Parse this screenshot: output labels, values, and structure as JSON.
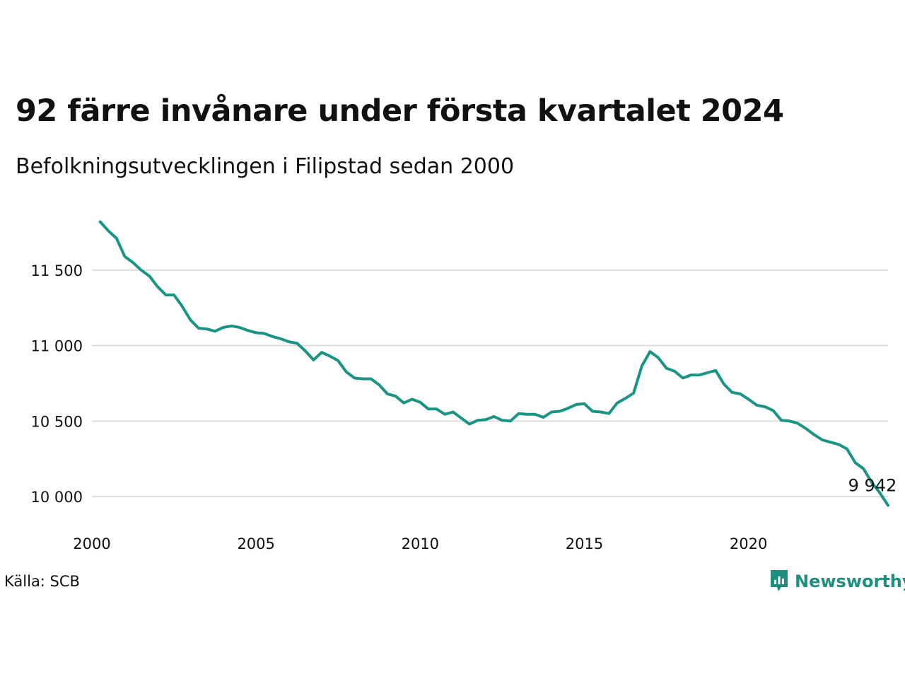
{
  "title": "92 färre invånare under första kvartalet 2024",
  "subtitle": "Befolkningsutvecklingen i Filipstad sedan 2000",
  "source": "Källa: SCB",
  "brand": "Newsworthy",
  "colors": {
    "line": "#1a9484",
    "grid": "#dddddd",
    "brand": "#1e8f7e"
  },
  "chart_data": {
    "type": "line",
    "title": "92 färre invånare under första kvartalet 2024",
    "subtitle": "Befolkningsutvecklingen i Filipstad sedan 2000",
    "xlabel": "",
    "ylabel": "",
    "xlim": [
      2000,
      2024.25
    ],
    "ylim": [
      9860,
      11930
    ],
    "x_ticks": [
      2000,
      2005,
      2010,
      2015,
      2020
    ],
    "x_tick_labels": [
      "2000",
      "2005",
      "2010",
      "2015",
      "2020"
    ],
    "y_ticks": [
      10000,
      10500,
      11000,
      11500
    ],
    "y_tick_labels": [
      "10 000",
      "10 500",
      "11 000",
      "11 500"
    ],
    "grid": true,
    "end_label": "9 942",
    "series": [
      {
        "x": [
          2000.25,
          2000.5,
          2000.75,
          2001,
          2001.25,
          2001.5,
          2001.75,
          2002,
          2002.25,
          2002.5,
          2002.75,
          2003,
          2003.25,
          2003.5,
          2003.75,
          2004,
          2004.25,
          2004.5,
          2004.75,
          2005,
          2005.25,
          2005.5,
          2005.75,
          2006,
          2006.25,
          2006.5,
          2006.75,
          2007,
          2007.25,
          2007.5,
          2007.75,
          2008,
          2008.25,
          2008.5,
          2008.75,
          2009,
          2009.25,
          2009.5,
          2009.75,
          2010,
          2010.25,
          2010.5,
          2010.75,
          2011,
          2011.25,
          2011.5,
          2011.75,
          2012,
          2012.25,
          2012.5,
          2012.75,
          2013,
          2013.25,
          2013.5,
          2013.75,
          2014,
          2014.25,
          2014.5,
          2014.75,
          2015,
          2015.25,
          2015.5,
          2015.75,
          2016,
          2016.25,
          2016.5,
          2016.75,
          2017,
          2017.25,
          2017.5,
          2017.75,
          2018,
          2018.25,
          2018.5,
          2018.75,
          2019,
          2019.25,
          2019.5,
          2019.75,
          2020,
          2020.25,
          2020.5,
          2020.75,
          2021,
          2021.25,
          2021.5,
          2021.75,
          2022,
          2022.25,
          2022.5,
          2022.75,
          2023,
          2023.25,
          2023.5,
          2023.75,
          2024,
          2024.25
        ],
        "y": [
          11820,
          11760,
          11710,
          11590,
          11550,
          11500,
          11460,
          11390,
          11335,
          11335,
          11260,
          11170,
          11115,
          11110,
          11095,
          11120,
          11130,
          11120,
          11100,
          11085,
          11080,
          11060,
          11045,
          11025,
          11015,
          10965,
          10905,
          10955,
          10930,
          10900,
          10825,
          10785,
          10780,
          10780,
          10740,
          10680,
          10665,
          10620,
          10645,
          10625,
          10580,
          10580,
          10545,
          10560,
          10520,
          10480,
          10505,
          10510,
          10530,
          10505,
          10500,
          10550,
          10545,
          10545,
          10525,
          10560,
          10565,
          10585,
          10610,
          10615,
          10565,
          10560,
          10550,
          10620,
          10650,
          10685,
          10865,
          10960,
          10920,
          10850,
          10830,
          10785,
          10805,
          10805,
          10820,
          10835,
          10745,
          10690,
          10680,
          10645,
          10605,
          10595,
          10570,
          10505,
          10500,
          10485,
          10450,
          10410,
          10375,
          10360,
          10345,
          10315,
          10225,
          10185,
          10095,
          10025,
          9942
        ]
      }
    ]
  }
}
